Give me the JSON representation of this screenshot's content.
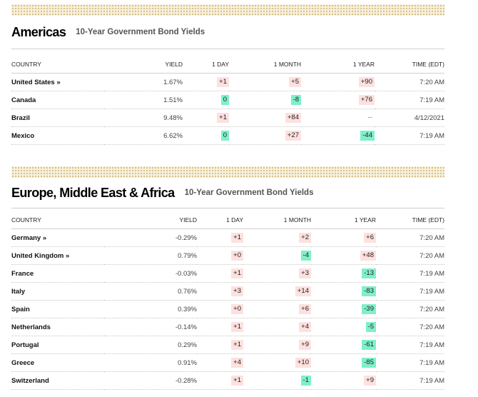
{
  "americas": {
    "title": "Americas",
    "subtitle": "10-Year Government Bond Yields",
    "headers": [
      "COUNTRY",
      "YIELD",
      "1 DAY",
      "1 MONTH",
      "1 YEAR",
      "TIME (EDT)"
    ],
    "rows": [
      {
        "country": "United States",
        "link": "»",
        "yield": "1.67%",
        "day": "+1",
        "day_dir": "pos",
        "month": "+5",
        "month_dir": "pos",
        "year": "+90",
        "year_dir": "pos",
        "time": "7:20 AM"
      },
      {
        "country": "Canada",
        "link": "",
        "yield": "1.51%",
        "day": "0",
        "day_dir": "zero",
        "month": "-8",
        "month_dir": "neg",
        "year": "+76",
        "year_dir": "pos",
        "time": "7:19 AM"
      },
      {
        "country": "Brazil",
        "link": "",
        "yield": "9.48%",
        "day": "+1",
        "day_dir": "pos",
        "month": "+84",
        "month_dir": "pos",
        "year": "--",
        "year_dir": "none",
        "time": "4/12/2021"
      },
      {
        "country": "Mexico",
        "link": "",
        "yield": "6.62%",
        "day": "0",
        "day_dir": "zero",
        "month": "+27",
        "month_dir": "pos",
        "year": "-44",
        "year_dir": "neg",
        "time": "7:19 AM"
      }
    ]
  },
  "emea": {
    "title": "Europe, Middle East & Africa",
    "subtitle": "10-Year Government Bond Yields",
    "headers": [
      "COUNTRY",
      "YIELD",
      "1 DAY",
      "1 MONTH",
      "1 YEAR",
      "TIME (EDT)"
    ],
    "rows": [
      {
        "country": "Germany",
        "link": "»",
        "yield": "-0.29%",
        "day": "+1",
        "day_dir": "pos",
        "month": "+2",
        "month_dir": "pos",
        "year": "+6",
        "year_dir": "pos",
        "time": "7:20 AM"
      },
      {
        "country": "United Kingdom",
        "link": "»",
        "yield": "0.79%",
        "day": "+0",
        "day_dir": "pos",
        "month": "-4",
        "month_dir": "neg",
        "year": "+48",
        "year_dir": "pos",
        "time": "7:20 AM"
      },
      {
        "country": "France",
        "link": "",
        "yield": "-0.03%",
        "day": "+1",
        "day_dir": "pos",
        "month": "+3",
        "month_dir": "pos",
        "year": "-13",
        "year_dir": "neg",
        "time": "7:19 AM"
      },
      {
        "country": "Italy",
        "link": "",
        "yield": "0.76%",
        "day": "+3",
        "day_dir": "pos",
        "month": "+14",
        "month_dir": "pos",
        "year": "-83",
        "year_dir": "neg",
        "time": "7:19 AM"
      },
      {
        "country": "Spain",
        "link": "",
        "yield": "0.39%",
        "day": "+0",
        "day_dir": "pos",
        "month": "+6",
        "month_dir": "pos",
        "year": "-39",
        "year_dir": "neg",
        "time": "7:20 AM"
      },
      {
        "country": "Netherlands",
        "link": "",
        "yield": "-0.14%",
        "day": "+1",
        "day_dir": "pos",
        "month": "+4",
        "month_dir": "pos",
        "year": "-5",
        "year_dir": "neg",
        "time": "7:20 AM"
      },
      {
        "country": "Portugal",
        "link": "",
        "yield": "0.29%",
        "day": "+1",
        "day_dir": "pos",
        "month": "+9",
        "month_dir": "pos",
        "year": "-61",
        "year_dir": "neg",
        "time": "7:19 AM"
      },
      {
        "country": "Greece",
        "link": "",
        "yield": "0.91%",
        "day": "+4",
        "day_dir": "pos",
        "month": "+10",
        "month_dir": "pos",
        "year": "-85",
        "year_dir": "neg",
        "time": "7:19 AM"
      },
      {
        "country": "Switzerland",
        "link": "",
        "yield": "-0.28%",
        "day": "+1",
        "day_dir": "pos",
        "month": "-1",
        "month_dir": "neg",
        "year": "+9",
        "year_dir": "pos",
        "time": "7:19 AM"
      }
    ]
  },
  "colors": {
    "positive_bg": "#fde1df",
    "negative_bg": "#7ff0c8",
    "band": "#f6f0de",
    "band_dots": "#d6b874"
  }
}
